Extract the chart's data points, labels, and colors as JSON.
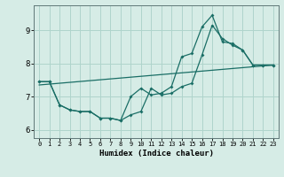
{
  "xlabel": "Humidex (Indice chaleur)",
  "bg_color": "#d6ece6",
  "grid_color": "#afd4cc",
  "line_color": "#1a6e66",
  "xlim": [
    -0.5,
    23.5
  ],
  "ylim": [
    5.75,
    9.75
  ],
  "yticks": [
    6,
    7,
    8,
    9
  ],
  "xticks": [
    0,
    1,
    2,
    3,
    4,
    5,
    6,
    7,
    8,
    9,
    10,
    11,
    12,
    13,
    14,
    15,
    16,
    17,
    18,
    19,
    20,
    21,
    22,
    23
  ],
  "series1_x": [
    0,
    1,
    2,
    3,
    4,
    5,
    6,
    7,
    8,
    9,
    10,
    11,
    12,
    13,
    14,
    15,
    16,
    17,
    18,
    19,
    20,
    21,
    22,
    23
  ],
  "series1_y": [
    7.45,
    7.45,
    6.75,
    6.6,
    6.55,
    6.55,
    6.35,
    6.35,
    6.28,
    6.45,
    6.55,
    7.25,
    7.05,
    7.1,
    7.3,
    7.4,
    8.25,
    9.15,
    8.75,
    8.55,
    8.4,
    7.95,
    7.95,
    7.95
  ],
  "series2_x": [
    0,
    1,
    2,
    3,
    4,
    5,
    6,
    7,
    8,
    9,
    10,
    11,
    12,
    13,
    14,
    15,
    16,
    17,
    18,
    19,
    20,
    21,
    22,
    23
  ],
  "series2_y": [
    7.45,
    7.45,
    6.75,
    6.6,
    6.55,
    6.55,
    6.35,
    6.35,
    6.28,
    7.0,
    7.25,
    7.05,
    7.1,
    7.3,
    8.2,
    8.3,
    9.1,
    9.45,
    8.65,
    8.6,
    8.4,
    7.95,
    7.95,
    7.95
  ],
  "trend_x": [
    0,
    23
  ],
  "trend_y": [
    7.35,
    7.95
  ]
}
